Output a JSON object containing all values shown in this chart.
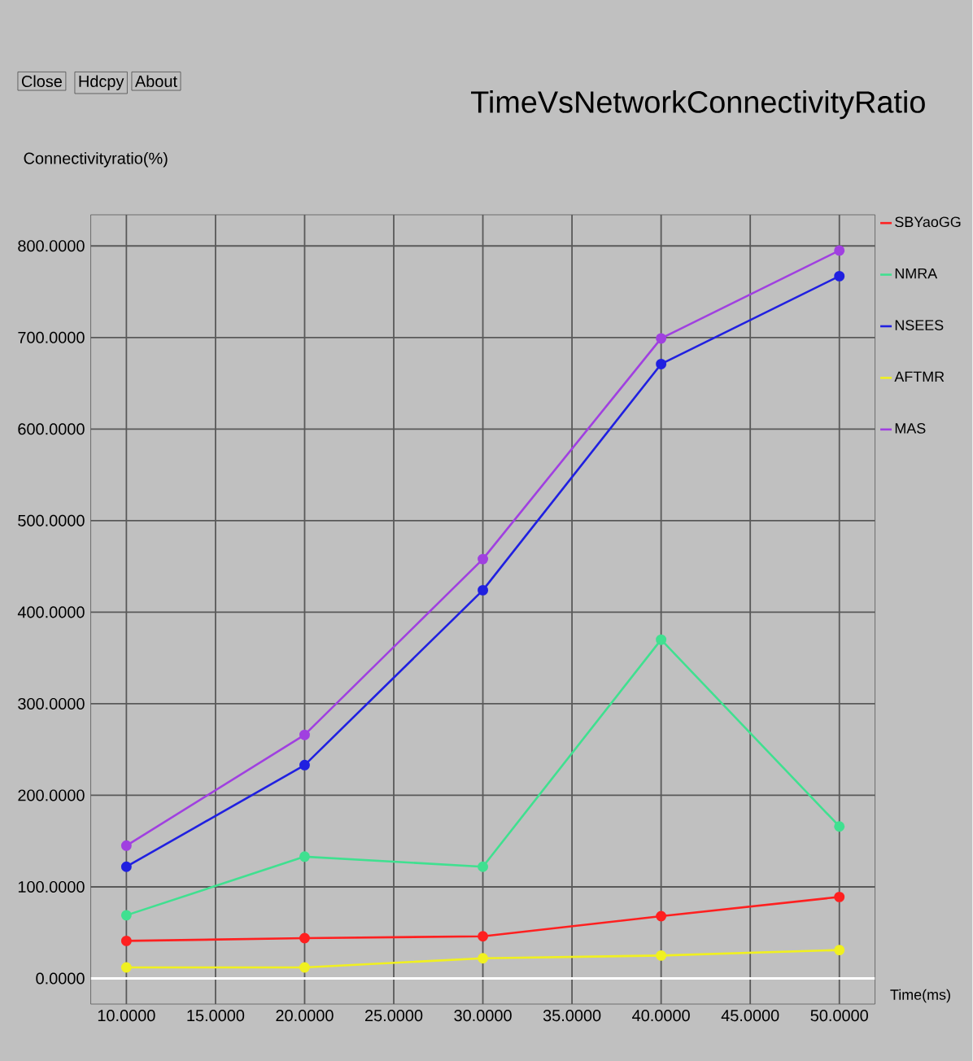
{
  "chart_data": {
    "type": "line",
    "title": "TimeVsNetworkConnectivityRatio",
    "xlabel": "Time(ms)",
    "ylabel": "Connectivityratio(%)",
    "annotations": [
      "Close",
      "Hdcpy",
      "About"
    ],
    "x": [
      10,
      20,
      30,
      40,
      50
    ],
    "series": [
      {
        "name": "SBYaoGG",
        "color": "#ff2020",
        "values": [
          41,
          44,
          46,
          68,
          89
        ]
      },
      {
        "name": "NMRA",
        "color": "#40e090",
        "values": [
          69,
          133,
          122,
          370,
          166
        ]
      },
      {
        "name": "NSEES",
        "color": "#2020e0",
        "values": [
          122,
          233,
          424,
          671,
          767
        ]
      },
      {
        "name": "AFTMR",
        "color": "#f0f020",
        "values": [
          12,
          12,
          22,
          25,
          31
        ]
      },
      {
        "name": "MAS",
        "color": "#a040e0",
        "values": [
          145,
          266,
          458,
          699,
          795
        ]
      }
    ],
    "xlim": [
      8,
      52
    ],
    "ylim": [
      -28,
      834
    ],
    "xticks": [
      {
        "value": 10,
        "label": "10.0000"
      },
      {
        "value": 15,
        "label": "15.0000"
      },
      {
        "value": 20,
        "label": "20.0000"
      },
      {
        "value": 25,
        "label": "25.0000"
      },
      {
        "value": 30,
        "label": "30.0000"
      },
      {
        "value": 35,
        "label": "35.0000"
      },
      {
        "value": 40,
        "label": "40.0000"
      },
      {
        "value": 45,
        "label": "45.0000"
      },
      {
        "value": 50,
        "label": "50.0000"
      }
    ],
    "yticks": [
      {
        "value": 0,
        "label": "0.0000"
      },
      {
        "value": 100,
        "label": "100.0000"
      },
      {
        "value": 200,
        "label": "200.0000"
      },
      {
        "value": 300,
        "label": "300.0000"
      },
      {
        "value": 400,
        "label": "400.0000"
      },
      {
        "value": 500,
        "label": "500.0000"
      },
      {
        "value": 600,
        "label": "600.0000"
      },
      {
        "value": 700,
        "label": "700.0000"
      },
      {
        "value": 800,
        "label": "800.0000"
      }
    ],
    "ref_lines": [
      {
        "axis": "y",
        "value": 0,
        "color": "#ffffff"
      }
    ],
    "grid": true,
    "legend": "right",
    "marker": "circle",
    "line_style": "solid"
  }
}
